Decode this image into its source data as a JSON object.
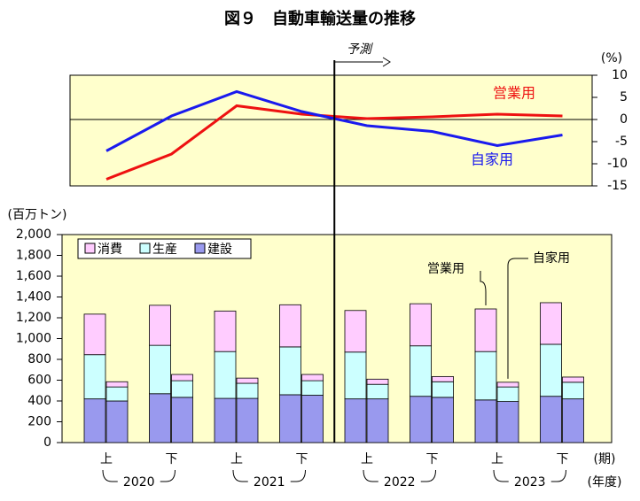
{
  "title": "図９　自動車輸送量の推移",
  "chart_data": [
    {
      "type": "line",
      "ylabel": "(%)",
      "ylim": [
        -15,
        10
      ],
      "yticks": [
        10,
        5,
        0,
        -5,
        -10,
        -15
      ],
      "series": [
        {
          "name": "営業用",
          "color": "#ee1111",
          "values": [
            -13.5,
            -7.8,
            3.1,
            1.2,
            0.2,
            0.6,
            1.2,
            0.8
          ]
        },
        {
          "name": "自家用",
          "color": "#1a1aee",
          "values": [
            -7.1,
            0.8,
            6.3,
            1.8,
            -1.4,
            -2.7,
            -5.9,
            -3.5
          ]
        }
      ],
      "forecast": {
        "label": "予測",
        "from": 4
      }
    },
    {
      "type": "bar",
      "ylabel": "(百万トン)",
      "xlabel": "(期)",
      "xlabel2": "(年度)",
      "categories": [
        "上",
        "下",
        "上",
        "下",
        "上",
        "下",
        "上",
        "下"
      ],
      "years": [
        "2020",
        "2021",
        "2022",
        "2023"
      ],
      "ylim": [
        0,
        2000
      ],
      "yticks": [
        0,
        200,
        400,
        600,
        800,
        {
          "value": 1000,
          "label": "1,000"
        },
        {
          "value": 1200,
          "label": "1,200"
        },
        {
          "value": 1400,
          "label": "1,400"
        },
        {
          "value": 1600,
          "label": "1,600"
        },
        {
          "value": 1800,
          "label": "1,800"
        },
        {
          "value": 2000,
          "label": "2,000"
        }
      ],
      "stacks": [
        {
          "name": "建設",
          "color": "#9999ee"
        },
        {
          "name": "生産",
          "color": "#ccffff"
        },
        {
          "name": "消費",
          "color": "#ffccff"
        }
      ],
      "groups": [
        {
          "name": "営業用",
          "series": [
            [
              420,
              470,
              425,
              460,
              420,
              445,
              410,
              445
            ],
            [
              425,
              465,
              450,
              460,
              450,
              485,
              465,
              500
            ],
            [
              390,
              385,
              390,
              405,
              400,
              405,
              410,
              400
            ]
          ]
        },
        {
          "name": "自家用",
          "series": [
            [
              400,
              435,
              425,
              455,
              420,
              435,
              395,
              420
            ],
            [
              135,
              160,
              145,
              140,
              140,
              150,
              140,
              160
            ],
            [
              50,
              60,
              50,
              60,
              50,
              50,
              45,
              50
            ]
          ]
        }
      ]
    }
  ]
}
